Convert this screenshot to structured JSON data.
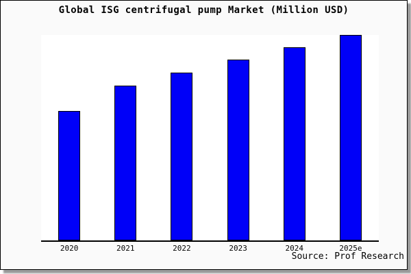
{
  "header": {
    "title": "Global ISG centrifugal pump Market (Million USD)"
  },
  "chart_data": {
    "type": "bar",
    "title": "Global ISG centrifugal pump Market (Million USD)",
    "categories": [
      "2020",
      "2021",
      "2022",
      "2023",
      "2024",
      "2025e"
    ],
    "values": [
      63,
      75.3,
      81.7,
      88,
      94,
      100
    ],
    "value_note": "No y-axis or data labels shown; values estimated from bar heights, indexed to 2025e = 100",
    "xlabel": "",
    "ylabel": "",
    "ylim": [
      0,
      100
    ],
    "grid": false,
    "legend": false,
    "bar_color": "#0000f8",
    "bar_border_color": "#000000"
  },
  "footer": {
    "source": "Source: Prof Research"
  },
  "colors": {
    "background": "#fafafa",
    "plot_background": "#ffffff",
    "axis": "#000000",
    "bar": "#0000f8",
    "text": "#000000",
    "shadow": "#9a9a9a"
  }
}
